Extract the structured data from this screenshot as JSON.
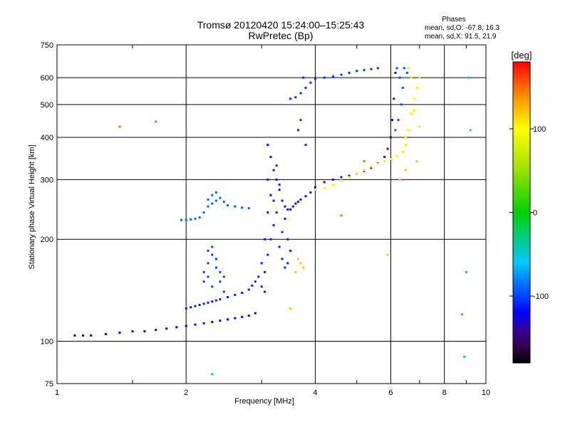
{
  "chart_data": {
    "type": "scatter",
    "title": "Tromsø 20120420 15:24:00–15:25:43",
    "subtitle": "RwPretec (Bp)",
    "xlabel": "Frequency [MHz]",
    "ylabel": "Stationary phase Virtual Height [km]",
    "x_scale": "log",
    "y_scale": "log",
    "xlim": [
      1,
      10
    ],
    "ylim": [
      75,
      750
    ],
    "x_ticks": [
      1,
      2,
      4,
      6,
      8,
      10
    ],
    "x_tick_labels": [
      "1",
      "2",
      "4",
      "6",
      "8",
      "10"
    ],
    "y_ticks": [
      75,
      100,
      200,
      300,
      400,
      500,
      600,
      750
    ],
    "y_tick_labels": [
      "75",
      "100",
      "200",
      "300",
      "400",
      "500",
      "600",
      "750"
    ],
    "grid": true,
    "stats": {
      "heading": "Phases",
      "line_o": "mean, sd,O:  -67.8, 16.3",
      "line_x": "mean, sd,X:  91.5, 21.9"
    },
    "colorbar": {
      "label": "[deg]",
      "range": [
        -180,
        180
      ],
      "ticks": [
        100,
        0,
        -100
      ],
      "tick_labels": [
        "100",
        "0",
        "-100"
      ]
    },
    "point_size_note": "",
    "series": [
      {
        "phase": -120,
        "points": [
          [
            1.1,
            104
          ],
          [
            1.15,
            104
          ],
          [
            1.2,
            104
          ],
          [
            1.3,
            105
          ],
          [
            1.4,
            106
          ],
          [
            1.5,
            107
          ],
          [
            1.6,
            107
          ],
          [
            1.7,
            108
          ],
          [
            1.8,
            109
          ],
          [
            1.9,
            110
          ],
          [
            2.0,
            111
          ],
          [
            2.1,
            112
          ],
          [
            2.2,
            113
          ],
          [
            2.3,
            114
          ],
          [
            2.4,
            115
          ],
          [
            2.5,
            116
          ],
          [
            2.6,
            117
          ],
          [
            2.7,
            118
          ],
          [
            2.8,
            119
          ],
          [
            2.9,
            121
          ]
        ]
      },
      {
        "phase": -110,
        "points": [
          [
            2.0,
            125
          ],
          [
            2.05,
            126
          ],
          [
            2.1,
            127
          ],
          [
            2.15,
            128
          ],
          [
            2.2,
            129
          ],
          [
            2.25,
            130
          ],
          [
            2.3,
            131
          ],
          [
            2.35,
            132
          ],
          [
            2.4,
            133
          ],
          [
            2.5,
            135
          ],
          [
            2.6,
            137
          ],
          [
            2.7,
            139
          ],
          [
            2.8,
            142
          ],
          [
            2.85,
            146
          ],
          [
            2.9,
            150
          ],
          [
            2.95,
            155
          ],
          [
            3.0,
            170
          ],
          [
            3.05,
            200
          ],
          [
            3.1,
            240
          ],
          [
            3.15,
            270
          ]
        ]
      },
      {
        "phase": -100,
        "points": [
          [
            2.2,
            160
          ],
          [
            2.25,
            170
          ],
          [
            2.3,
            180
          ],
          [
            2.35,
            165
          ],
          [
            2.4,
            150
          ],
          [
            2.45,
            140
          ],
          [
            2.3,
            145
          ],
          [
            2.2,
            150
          ],
          [
            2.25,
            155
          ],
          [
            2.35,
            175
          ],
          [
            2.4,
            160
          ],
          [
            2.3,
            190
          ],
          [
            2.25,
            185
          ],
          [
            2.45,
            155
          ]
        ]
      },
      {
        "phase": -90,
        "points": [
          [
            1.95,
            228
          ],
          [
            2.0,
            228
          ],
          [
            2.05,
            229
          ],
          [
            2.1,
            230
          ],
          [
            2.15,
            232
          ],
          [
            2.2,
            240
          ],
          [
            2.25,
            250
          ],
          [
            2.3,
            255
          ],
          [
            2.35,
            260
          ],
          [
            2.4,
            265
          ],
          [
            2.45,
            258
          ],
          [
            2.5,
            252
          ],
          [
            2.6,
            250
          ],
          [
            2.7,
            248
          ],
          [
            2.8,
            247
          ],
          [
            2.3,
            270
          ],
          [
            2.35,
            275
          ],
          [
            2.25,
            262
          ]
        ]
      },
      {
        "phase": -115,
        "points": [
          [
            3.1,
            380
          ],
          [
            3.15,
            350
          ],
          [
            3.2,
            320
          ],
          [
            3.25,
            300
          ],
          [
            3.3,
            280
          ],
          [
            3.35,
            260
          ],
          [
            3.4,
            250
          ],
          [
            3.45,
            245
          ],
          [
            3.5,
            245
          ],
          [
            3.55,
            250
          ],
          [
            3.6,
            255
          ],
          [
            3.65,
            258
          ],
          [
            3.7,
            262
          ],
          [
            3.8,
            268
          ],
          [
            3.9,
            275
          ],
          [
            4.0,
            285
          ],
          [
            4.2,
            295
          ],
          [
            4.4,
            300
          ],
          [
            4.6,
            305
          ],
          [
            4.8,
            308
          ],
          [
            5.0,
            312
          ],
          [
            5.2,
            318
          ],
          [
            5.4,
            325
          ],
          [
            5.6,
            335
          ],
          [
            5.8,
            350
          ],
          [
            5.9,
            370
          ],
          [
            6.0,
            400
          ],
          [
            6.05,
            450
          ],
          [
            6.1,
            520
          ],
          [
            6.15,
            620
          ]
        ]
      },
      {
        "phase": -110,
        "points": [
          [
            3.05,
            160
          ],
          [
            3.1,
            180
          ],
          [
            3.15,
            200
          ],
          [
            3.2,
            220
          ],
          [
            3.25,
            240
          ],
          [
            3.3,
            190
          ],
          [
            3.35,
            175
          ],
          [
            3.4,
            165
          ],
          [
            3.45,
            170
          ],
          [
            3.5,
            185
          ],
          [
            3.2,
            260
          ],
          [
            3.3,
            290
          ],
          [
            3.1,
            300
          ],
          [
            3.25,
            330
          ],
          [
            3.15,
            270
          ],
          [
            3.35,
            210
          ],
          [
            3.4,
            230
          ],
          [
            3.45,
            200
          ],
          [
            3.0,
            145
          ],
          [
            3.05,
            140
          ]
        ]
      },
      {
        "phase": -105,
        "points": [
          [
            3.5,
            520
          ],
          [
            3.6,
            525
          ],
          [
            3.7,
            540
          ],
          [
            3.8,
            560
          ],
          [
            3.9,
            580
          ],
          [
            4.0,
            595
          ],
          [
            4.2,
            600
          ],
          [
            4.4,
            605
          ],
          [
            4.6,
            612
          ],
          [
            4.8,
            620
          ],
          [
            5.0,
            628
          ],
          [
            5.2,
            632
          ],
          [
            5.4,
            636
          ],
          [
            5.6,
            640
          ],
          [
            3.75,
            600
          ],
          [
            3.7,
            450
          ],
          [
            3.65,
            420
          ],
          [
            3.8,
            380
          ]
        ]
      },
      {
        "phase": 90,
        "points": [
          [
            4.0,
            280
          ],
          [
            4.2,
            283
          ],
          [
            4.4,
            290
          ],
          [
            4.6,
            298
          ],
          [
            4.8,
            305
          ],
          [
            5.0,
            312
          ],
          [
            5.2,
            320
          ],
          [
            5.4,
            328
          ],
          [
            5.6,
            334
          ],
          [
            5.8,
            340
          ],
          [
            6.0,
            345
          ],
          [
            6.2,
            352
          ],
          [
            6.4,
            362
          ],
          [
            6.5,
            380
          ],
          [
            6.6,
            420
          ],
          [
            6.7,
            470
          ],
          [
            6.8,
            520
          ],
          [
            6.9,
            560
          ],
          [
            7.0,
            600
          ],
          [
            6.6,
            640
          ],
          [
            6.7,
            600
          ],
          [
            6.8,
            480
          ],
          [
            7.0,
            430
          ],
          [
            6.5,
            400
          ]
        ]
      },
      {
        "phase": 120,
        "points": [
          [
            3.6,
            160
          ],
          [
            3.7,
            170
          ],
          [
            3.75,
            165
          ],
          [
            3.65,
            175
          ],
          [
            3.5,
            125
          ],
          [
            5.9,
            180
          ],
          [
            6.3,
            300
          ],
          [
            6.5,
            320
          ],
          [
            6.9,
            340
          ]
        ]
      },
      {
        "phase": -95,
        "points": [
          [
            6.2,
            640
          ],
          [
            6.3,
            600
          ],
          [
            6.4,
            560
          ],
          [
            6.35,
            500
          ],
          [
            6.25,
            450
          ],
          [
            6.15,
            420
          ],
          [
            6.45,
            640
          ],
          [
            6.55,
            620
          ]
        ]
      },
      {
        "phase": 150,
        "points": [
          [
            1.4,
            430
          ],
          [
            1.7,
            445
          ],
          [
            4.6,
            235
          ],
          [
            8.8,
            120
          ],
          [
            5.2,
            340
          ]
        ]
      },
      {
        "phase": -60,
        "points": [
          [
            9.0,
            160
          ],
          [
            9.1,
            600
          ],
          [
            9.2,
            420
          ],
          [
            8.9,
            90
          ],
          [
            2.3,
            80
          ]
        ]
      }
    ]
  }
}
